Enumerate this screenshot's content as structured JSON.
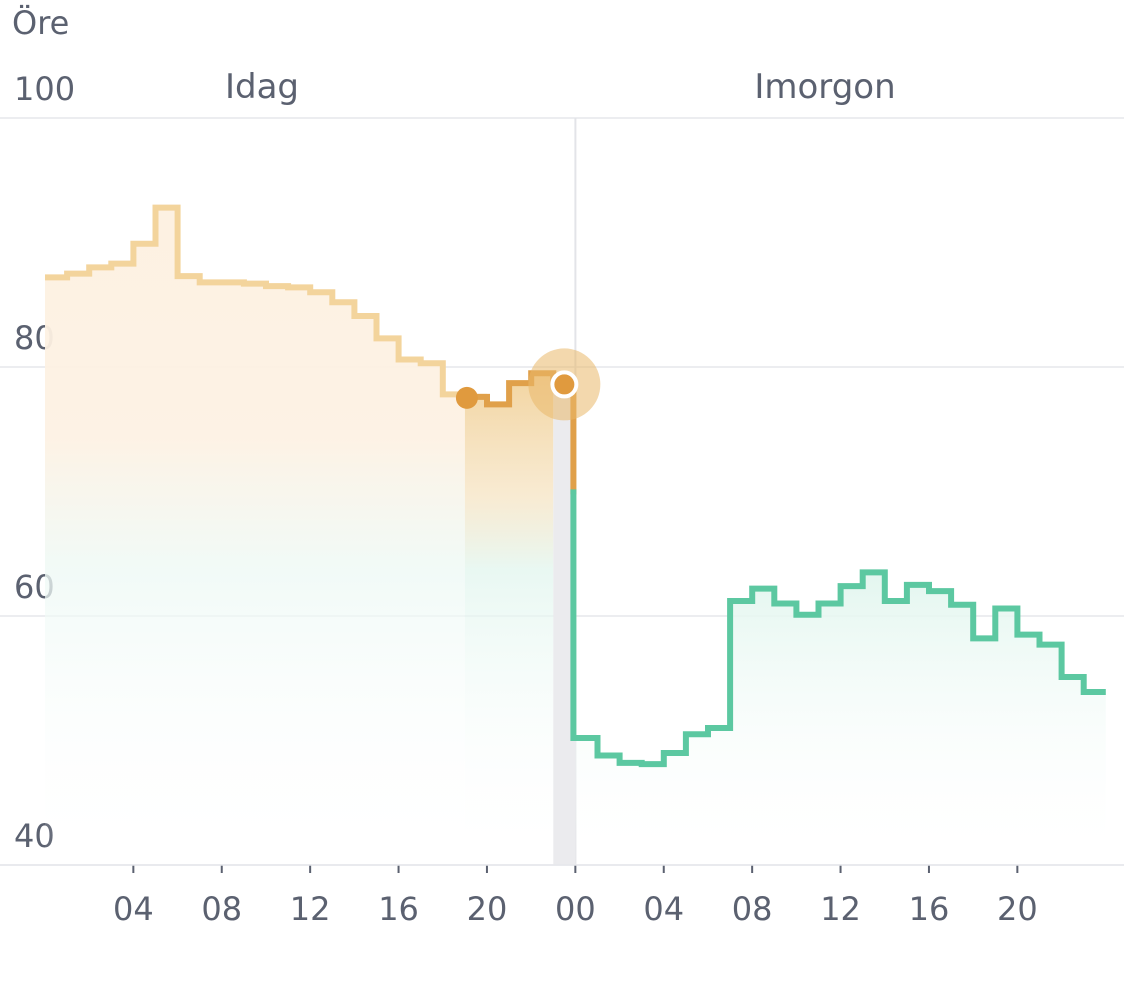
{
  "chart_data": {
    "type": "line",
    "unit_label": "Öre",
    "day_labels": [
      "Idag",
      "Imorgon"
    ],
    "ylim": [
      40,
      100
    ],
    "y_ticks": [
      "100",
      "80",
      "60",
      "40"
    ],
    "x_tick_labels": [
      "04",
      "08",
      "12",
      "16",
      "20",
      "00",
      "04",
      "08",
      "12",
      "16",
      "20"
    ],
    "grid": true,
    "series": [
      {
        "day": "Idag",
        "color": "#f3d49c",
        "values": [
          87.2,
          87.5,
          88.0,
          88.3,
          89.9,
          92.8,
          87.3,
          86.8,
          86.8,
          86.7,
          86.5,
          86.4,
          86.0,
          85.2,
          84.1,
          82.3,
          80.6,
          80.3,
          77.8,
          77.6,
          77.0,
          78.7,
          79.5,
          78.6
        ]
      },
      {
        "day": "Imorgon",
        "color": "#5cc8a1",
        "values": [
          50.2,
          48.8,
          48.2,
          48.1,
          49.0,
          50.5,
          51.0,
          61.2,
          62.2,
          61.0,
          60.1,
          61.0,
          62.4,
          63.5,
          61.2,
          62.5,
          62.0,
          60.9,
          58.2,
          60.6,
          58.5,
          57.7,
          55.1,
          53.9
        ]
      }
    ],
    "current_hour_index": 23,
    "current_value": 78.6,
    "colors": {
      "today_line": "#f3d49c",
      "today_fill": "#fdf1e2",
      "current_line": "#e0a04a",
      "current_marker": "#e09a3e",
      "tomorrow_line": "#5cc8a1",
      "tomorrow_fill": "#e3f6ef",
      "grid": "#e6e7eb",
      "label": "#5b6170"
    }
  }
}
